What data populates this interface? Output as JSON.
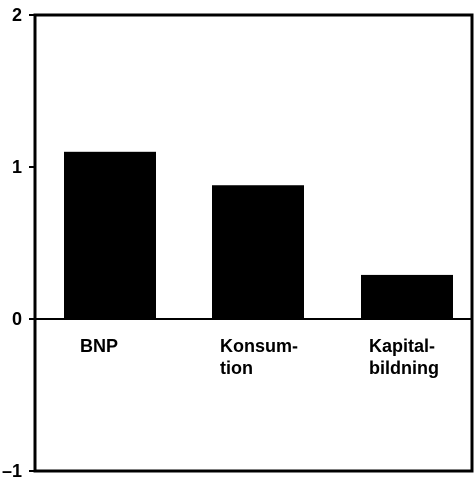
{
  "chart_data": {
    "type": "bar",
    "categories": [
      [
        "BNP"
      ],
      [
        "Konsum-",
        "tion"
      ],
      [
        "Kapital-",
        "bildning"
      ]
    ],
    "values": [
      1.1,
      0.88,
      0.29
    ],
    "ylim": [
      -1,
      2
    ],
    "yticks": [
      "2",
      "1",
      "0",
      "–1"
    ],
    "ytick_values": [
      2,
      1,
      0,
      -1
    ],
    "grid": false,
    "bar_color": "#000000",
    "axis_color": "#000000",
    "title": "",
    "xlabel": "",
    "ylabel": ""
  }
}
